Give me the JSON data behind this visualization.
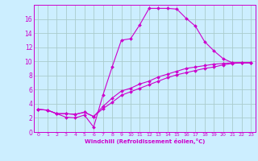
{
  "xlabel": "Windchill (Refroidissement éolien,°C)",
  "xlim": [
    -0.5,
    23.5
  ],
  "ylim": [
    0,
    18
  ],
  "xticks": [
    0,
    1,
    2,
    3,
    4,
    5,
    6,
    7,
    8,
    9,
    10,
    11,
    12,
    13,
    14,
    15,
    16,
    17,
    18,
    19,
    20,
    21,
    22,
    23
  ],
  "yticks": [
    0,
    2,
    4,
    6,
    8,
    10,
    12,
    14,
    16
  ],
  "background_color": "#cceeff",
  "grid_color": "#aacccc",
  "line_color": "#cc00cc",
  "lines": [
    {
      "x": [
        0,
        1,
        2,
        3,
        4,
        5,
        6,
        7,
        8,
        9,
        10,
        11,
        12,
        13,
        14,
        15,
        16,
        17,
        18,
        19,
        20,
        21,
        22,
        23
      ],
      "y": [
        3.2,
        3.1,
        2.6,
        2.1,
        2.0,
        2.4,
        0.7,
        5.2,
        9.2,
        13.0,
        13.2,
        15.2,
        17.5,
        17.5,
        17.5,
        17.4,
        16.1,
        15.0,
        12.8,
        11.5,
        10.4,
        9.8,
        9.8,
        9.8
      ]
    },
    {
      "x": [
        0,
        1,
        2,
        3,
        4,
        5,
        6,
        7,
        8,
        9,
        10,
        11,
        12,
        13,
        14,
        15,
        16,
        17,
        18,
        19,
        20,
        21,
        22,
        23
      ],
      "y": [
        3.2,
        3.1,
        2.6,
        2.6,
        2.5,
        2.8,
        2.2,
        3.6,
        4.8,
        5.8,
        6.2,
        6.8,
        7.2,
        7.8,
        8.2,
        8.6,
        9.0,
        9.2,
        9.4,
        9.6,
        9.7,
        9.8,
        9.8,
        9.8
      ]
    },
    {
      "x": [
        0,
        1,
        2,
        3,
        4,
        5,
        6,
        7,
        8,
        9,
        10,
        11,
        12,
        13,
        14,
        15,
        16,
        17,
        18,
        19,
        20,
        21,
        22,
        23
      ],
      "y": [
        3.2,
        3.1,
        2.6,
        2.6,
        2.5,
        2.8,
        2.2,
        3.3,
        4.2,
        5.2,
        5.7,
        6.2,
        6.7,
        7.2,
        7.7,
        8.1,
        8.4,
        8.7,
        9.0,
        9.2,
        9.5,
        9.7,
        9.8,
        9.8
      ]
    }
  ]
}
